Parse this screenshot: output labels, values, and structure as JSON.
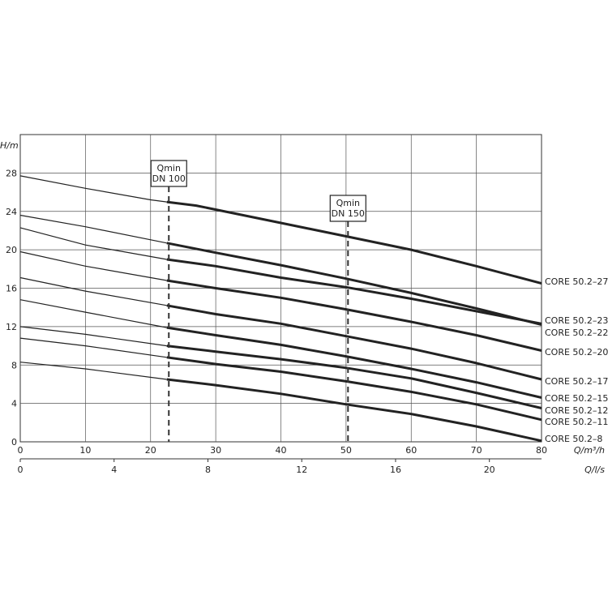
{
  "chart_data": {
    "type": "line",
    "y_axis": {
      "label": "H/m",
      "ticks": [
        "0",
        "4",
        "8",
        "12",
        "16",
        "20",
        "24",
        "28"
      ],
      "range": [
        0,
        32
      ]
    },
    "x_axis": {
      "label": "Q/m³/h",
      "ticks": [
        "0",
        "10",
        "20",
        "30",
        "40",
        "50",
        "60",
        "70",
        "80"
      ],
      "range": [
        0,
        80
      ]
    },
    "x_axis_secondary": {
      "label": "Q/l/s",
      "ticks": [
        "0",
        "4",
        "8",
        "12",
        "16",
        "20"
      ],
      "tick_values": [
        0,
        4,
        8,
        12,
        16,
        20
      ],
      "range_m3h": [
        0,
        80
      ]
    },
    "grid": true,
    "annotations": [
      {
        "id": "qmin-dn100",
        "lines": [
          "Qmin",
          "DN 100"
        ],
        "x": 22.8
      },
      {
        "id": "qmin-dn150",
        "lines": [
          "Qmin",
          "DN 150"
        ],
        "x": 50.3
      }
    ],
    "series": [
      {
        "name": "CORE 50.2–27",
        "bold_from": 22.5,
        "points": [
          [
            0,
            27.7
          ],
          [
            10,
            26.4
          ],
          [
            20,
            25.2
          ],
          [
            27,
            24.6
          ],
          [
            40,
            22.8
          ],
          [
            50,
            21.4
          ],
          [
            60,
            20.0
          ],
          [
            70,
            18.3
          ],
          [
            80,
            16.5
          ]
        ]
      },
      {
        "name": "CORE 50.2–23",
        "bold_from": 22.5,
        "points": [
          [
            0,
            23.6
          ],
          [
            10,
            22.4
          ],
          [
            22.5,
            20.7
          ],
          [
            30,
            19.7
          ],
          [
            40,
            18.4
          ],
          [
            50,
            17.0
          ],
          [
            60,
            15.5
          ],
          [
            70,
            13.9
          ],
          [
            80,
            12.2
          ]
        ]
      },
      {
        "name": "CORE 50.2–22",
        "bold_from": 22.5,
        "points": [
          [
            0,
            22.3
          ],
          [
            10,
            20.5
          ],
          [
            22.5,
            19.0
          ],
          [
            30,
            18.3
          ],
          [
            40,
            17.1
          ],
          [
            50,
            16.1
          ],
          [
            60,
            14.9
          ],
          [
            70,
            13.6
          ],
          [
            80,
            12.3
          ]
        ]
      },
      {
        "name": "CORE 50.2–20",
        "bold_from": 22.5,
        "points": [
          [
            0,
            19.8
          ],
          [
            10,
            18.3
          ],
          [
            22.5,
            16.8
          ],
          [
            30,
            16.0
          ],
          [
            40,
            15.0
          ],
          [
            50,
            13.8
          ],
          [
            60,
            12.5
          ],
          [
            70,
            11.1
          ],
          [
            80,
            9.5
          ]
        ]
      },
      {
        "name": "CORE 50.2–17",
        "bold_from": 22.5,
        "points": [
          [
            0,
            17.1
          ],
          [
            10,
            15.7
          ],
          [
            22.5,
            14.2
          ],
          [
            30,
            13.3
          ],
          [
            40,
            12.3
          ],
          [
            50,
            11.0
          ],
          [
            60,
            9.7
          ],
          [
            70,
            8.2
          ],
          [
            80,
            6.5
          ]
        ]
      },
      {
        "name": "CORE 50.2–15",
        "bold_from": 22.5,
        "points": [
          [
            0,
            14.8
          ],
          [
            10,
            13.5
          ],
          [
            22.5,
            11.9
          ],
          [
            30,
            11.1
          ],
          [
            40,
            10.1
          ],
          [
            50,
            8.9
          ],
          [
            60,
            7.6
          ],
          [
            70,
            6.2
          ],
          [
            80,
            4.6
          ]
        ]
      },
      {
        "name": "CORE 50.2–12",
        "bold_from": 22.5,
        "points": [
          [
            0,
            12.0
          ],
          [
            10,
            11.2
          ],
          [
            22.5,
            10.0
          ],
          [
            30,
            9.4
          ],
          [
            40,
            8.6
          ],
          [
            50,
            7.7
          ],
          [
            60,
            6.6
          ],
          [
            70,
            5.1
          ],
          [
            80,
            3.5
          ]
        ]
      },
      {
        "name": "CORE 50.2–11",
        "bold_from": 22.5,
        "points": [
          [
            0,
            10.8
          ],
          [
            10,
            10.0
          ],
          [
            22.5,
            8.8
          ],
          [
            30,
            8.1
          ],
          [
            40,
            7.3
          ],
          [
            50,
            6.3
          ],
          [
            60,
            5.2
          ],
          [
            70,
            3.9
          ],
          [
            80,
            2.3
          ]
        ]
      },
      {
        "name": "CORE 50.2–8",
        "bold_from": 22.5,
        "points": [
          [
            0,
            8.3
          ],
          [
            10,
            7.6
          ],
          [
            22.5,
            6.5
          ],
          [
            30,
            5.9
          ],
          [
            40,
            5.0
          ],
          [
            50,
            3.9
          ],
          [
            60,
            2.9
          ],
          [
            70,
            1.6
          ],
          [
            80,
            0.1
          ]
        ]
      }
    ]
  }
}
